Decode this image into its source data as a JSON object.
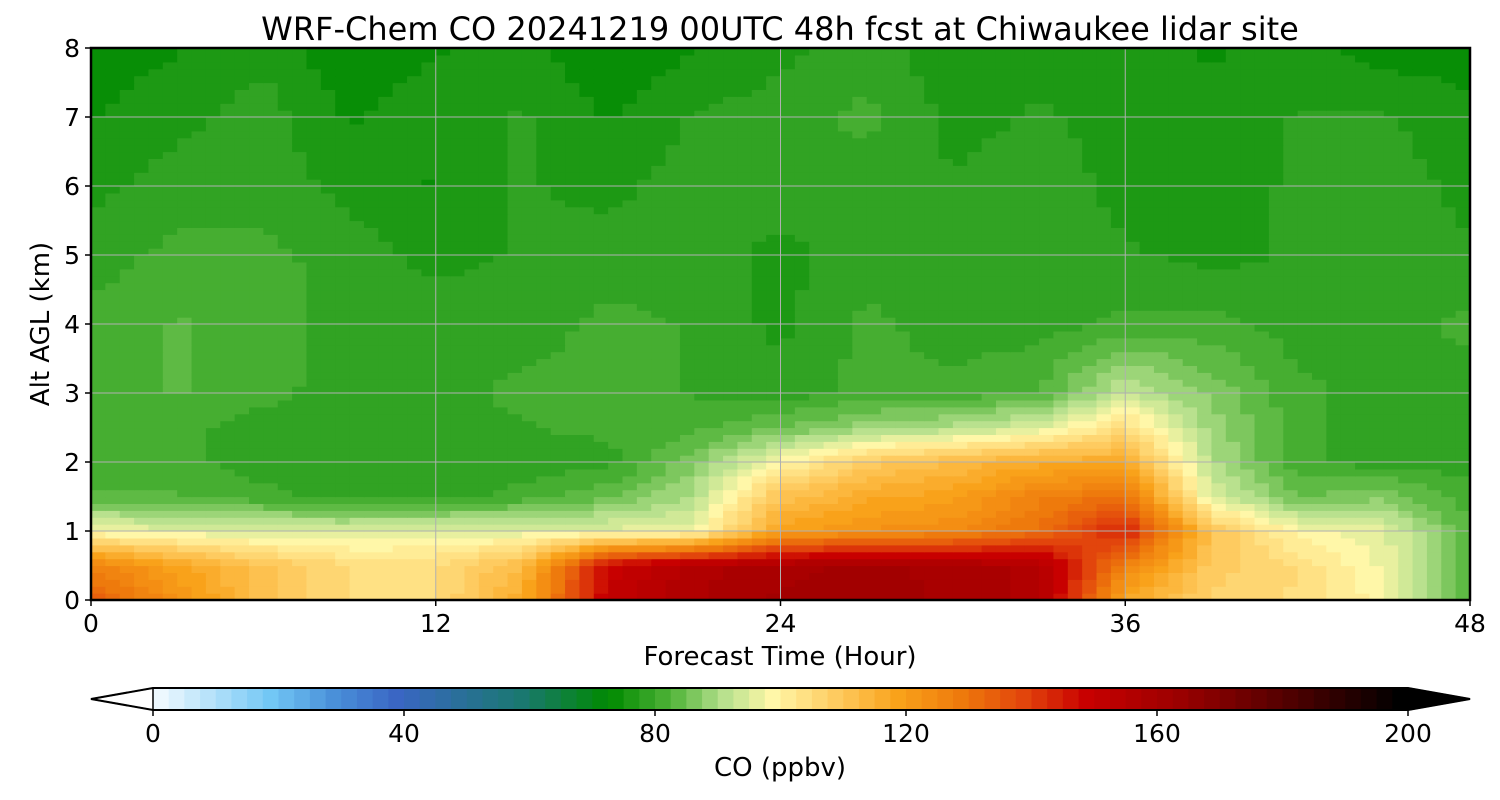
{
  "chart_data": {
    "type": "heatmap",
    "title": "WRF-Chem CO  20241219 00UTC 48h fcst at Chiwaukee lidar site",
    "xlabel": "Forecast Time (Hour)",
    "ylabel": "Alt AGL (km)",
    "xlim": [
      0,
      48
    ],
    "ylim": [
      0,
      8
    ],
    "xticks": [
      "0",
      "12",
      "24",
      "36",
      "48"
    ],
    "yticks": [
      "0",
      "1",
      "2",
      "3",
      "4",
      "5",
      "6",
      "7",
      "8"
    ],
    "grid": true,
    "colorbar": {
      "label": "CO  (ppbv)",
      "range": [
        0,
        200
      ],
      "ticks": [
        "0",
        "40",
        "80",
        "120",
        "160",
        "200"
      ],
      "extend": "both",
      "stops": [
        [
          0,
          "#ffffff"
        ],
        [
          20,
          "#72c7f5"
        ],
        [
          30,
          "#4a90d9"
        ],
        [
          40,
          "#3a66c4"
        ],
        [
          60,
          "#1a7870"
        ],
        [
          74,
          "#008a00"
        ],
        [
          84,
          "#52b43a"
        ],
        [
          92,
          "#b4e08c"
        ],
        [
          100,
          "#fff7a8"
        ],
        [
          110,
          "#fecb60"
        ],
        [
          120,
          "#f9a21a"
        ],
        [
          130,
          "#ee7a0c"
        ],
        [
          140,
          "#e2450c"
        ],
        [
          150,
          "#c80000"
        ],
        [
          165,
          "#9a0000"
        ],
        [
          180,
          "#5a0000"
        ],
        [
          200,
          "#000000"
        ]
      ]
    },
    "units": "ppbv",
    "x_hours": [
      0,
      3,
      6,
      9,
      12,
      15,
      18,
      21,
      24,
      27,
      30,
      33,
      36,
      39,
      42,
      45,
      48
    ],
    "z_km": [
      0,
      0.5,
      1,
      1.5,
      2,
      2.5,
      3,
      4,
      5,
      6,
      7,
      8
    ],
    "co_ppbv": [
      [
        136,
        124,
        112,
        106,
        106,
        118,
        152,
        158,
        162,
        164,
        160,
        158,
        118,
        108,
        106,
        100,
        84
      ],
      [
        128,
        120,
        112,
        106,
        106,
        114,
        150,
        158,
        160,
        162,
        160,
        158,
        128,
        110,
        106,
        98,
        84
      ],
      [
        99,
        97,
        96,
        96,
        97,
        97,
        97,
        98,
        120,
        124,
        126,
        132,
        146,
        112,
        100,
        97,
        84
      ],
      [
        84,
        84,
        82,
        80,
        80,
        82,
        86,
        92,
        112,
        118,
        120,
        128,
        132,
        96,
        86,
        88,
        82
      ],
      [
        82,
        82,
        80,
        79,
        79,
        80,
        80,
        88,
        100,
        110,
        114,
        118,
        118,
        92,
        82,
        80,
        80
      ],
      [
        82,
        82,
        80,
        80,
        80,
        81,
        82,
        83,
        86,
        90,
        92,
        96,
        106,
        90,
        82,
        80,
        80
      ],
      [
        82,
        84,
        82,
        80,
        80,
        82,
        82,
        81,
        80,
        82,
        82,
        84,
        94,
        88,
        82,
        80,
        80
      ],
      [
        82,
        84,
        83,
        80,
        80,
        80,
        82,
        81,
        78,
        82,
        80,
        80,
        82,
        82,
        80,
        80,
        82
      ],
      [
        80,
        82,
        82,
        80,
        78,
        79,
        80,
        80,
        78,
        80,
        79,
        80,
        79,
        78,
        79,
        80,
        79
      ],
      [
        78,
        80,
        80,
        78,
        76,
        79,
        78,
        80,
        80,
        80,
        79,
        80,
        78,
        78,
        79,
        80,
        78
      ],
      [
        76,
        78,
        80,
        76,
        78,
        79,
        76,
        79,
        80,
        82,
        78,
        79,
        78,
        77,
        79,
        79,
        77
      ],
      [
        75,
        76,
        78,
        74,
        76,
        77,
        74,
        76,
        78,
        80,
        77,
        78,
        77,
        76,
        77,
        75,
        75
      ]
    ]
  }
}
